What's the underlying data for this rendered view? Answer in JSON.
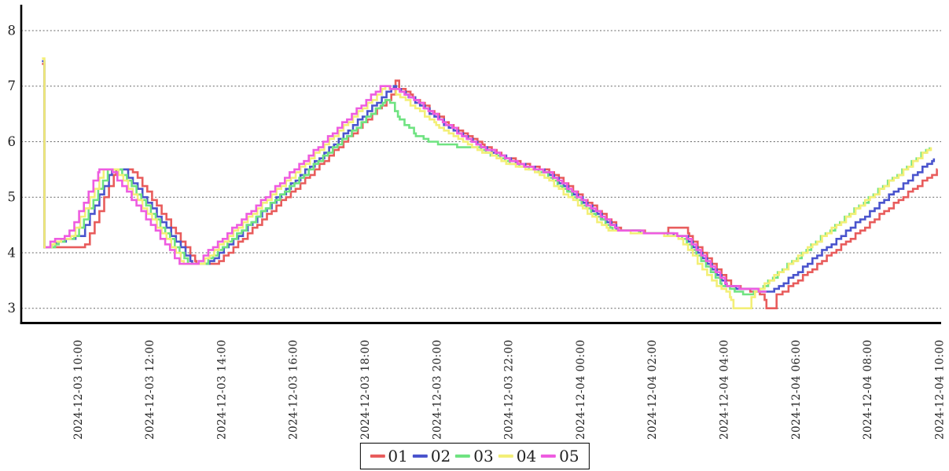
{
  "chart_data": {
    "type": "line",
    "step_style": "post",
    "title": "",
    "xlabel": "",
    "ylabel": "",
    "grid": true,
    "time_origin": "2024-12-03 09:00",
    "x_unit": "minutes since 2024-12-03 09:00",
    "x_axis": {
      "tick_minutes": [
        60,
        180,
        300,
        420,
        540,
        660,
        780,
        900,
        1020,
        1140,
        1260,
        1380,
        1500
      ],
      "labels": [
        "2024-12-03 10:00",
        "2024-12-03 12:00",
        "2024-12-03 14:00",
        "2024-12-03 16:00",
        "2024-12-03 18:00",
        "2024-12-03 20:00",
        "2024-12-03 22:00",
        "2024-12-04 00:00",
        "2024-12-04 02:00",
        "2024-12-04 04:00",
        "2024-12-04 06:00",
        "2024-12-04 08:00",
        "2024-12-04 10:00"
      ]
    },
    "y_axis": {
      "ticks": [
        3,
        4,
        5,
        6,
        7,
        8
      ],
      "min": 2.75,
      "max": 8.45
    },
    "legend": {
      "position": "bottom-center",
      "entries": [
        "01",
        "02",
        "03",
        "04",
        "05"
      ]
    },
    "series": [
      {
        "name": "01",
        "color": "#e85c5c",
        "points": [
          [
            0,
            7.4
          ],
          [
            4,
            7.4
          ],
          [
            4.1,
            4.1
          ],
          [
            70,
            4.1
          ],
          [
            124,
            5.5
          ],
          [
            149,
            5.5
          ],
          [
            258,
            3.8
          ],
          [
            291,
            3.8
          ],
          [
            591,
            6.9
          ],
          [
            591.1,
            7.1
          ],
          [
            597,
            7.1
          ],
          [
            597.1,
            6.95
          ],
          [
            620,
            6.8
          ],
          [
            680,
            6.3
          ],
          [
            740,
            5.9
          ],
          [
            800,
            5.6
          ],
          [
            850,
            5.45
          ],
          [
            968,
            4.4
          ],
          [
            1040,
            4.35
          ],
          [
            1047,
            4.45
          ],
          [
            1072,
            4.45
          ],
          [
            1082,
            4.3
          ],
          [
            1152,
            3.4
          ],
          [
            1188,
            3.3
          ],
          [
            1206,
            3.25
          ],
          [
            1211,
            3.0
          ],
          [
            1226,
            3.0
          ],
          [
            1228,
            3.25
          ],
          [
            1238,
            3.3
          ],
          [
            1497,
            5.5
          ]
        ]
      },
      {
        "name": "02",
        "color": "#4a54cd",
        "points": [
          [
            0,
            7.45
          ],
          [
            4,
            7.45
          ],
          [
            4.1,
            4.1
          ],
          [
            28,
            4.2
          ],
          [
            63,
            4.3
          ],
          [
            117,
            5.5
          ],
          [
            135,
            5.5
          ],
          [
            251,
            3.8
          ],
          [
            277,
            3.8
          ],
          [
            588,
            7.0
          ],
          [
            595,
            6.95
          ],
          [
            613,
            6.8
          ],
          [
            673,
            6.3
          ],
          [
            733,
            5.9
          ],
          [
            793,
            5.6
          ],
          [
            843,
            5.45
          ],
          [
            961,
            4.4
          ],
          [
            1033,
            4.35
          ],
          [
            1073,
            4.3
          ],
          [
            1143,
            3.4
          ],
          [
            1172,
            3.35
          ],
          [
            1215,
            3.3
          ],
          [
            1228,
            3.35
          ],
          [
            1491,
            5.7
          ]
        ]
      },
      {
        "name": "03",
        "color": "#6fe381",
        "points": [
          [
            14,
            4.1
          ],
          [
            28,
            4.2
          ],
          [
            56,
            4.3
          ],
          [
            110,
            5.5
          ],
          [
            128,
            5.5
          ],
          [
            244,
            3.8
          ],
          [
            270,
            3.8
          ],
          [
            570,
            6.7
          ],
          [
            578,
            6.75
          ],
          [
            595,
            6.45
          ],
          [
            625,
            6.1
          ],
          [
            665,
            5.95
          ],
          [
            726,
            5.88
          ],
          [
            786,
            5.6
          ],
          [
            836,
            5.45
          ],
          [
            954,
            4.4
          ],
          [
            1026,
            4.35
          ],
          [
            1066,
            4.3
          ],
          [
            1136,
            3.4
          ],
          [
            1162,
            3.3
          ],
          [
            1172,
            3.25
          ],
          [
            1184,
            3.25
          ],
          [
            1192,
            3.3
          ],
          [
            1484,
            5.9
          ]
        ]
      },
      {
        "name": "04",
        "color": "#f3ef77",
        "points": [
          [
            0,
            7.5
          ],
          [
            4,
            7.5
          ],
          [
            4.1,
            4.1
          ],
          [
            21,
            4.2
          ],
          [
            49,
            4.3
          ],
          [
            103,
            5.5
          ],
          [
            121,
            5.5
          ],
          [
            237,
            3.8
          ],
          [
            263,
            3.8
          ],
          [
            574,
            7.0
          ],
          [
            581,
            6.95
          ],
          [
            599,
            6.8
          ],
          [
            659,
            6.3
          ],
          [
            719,
            5.9
          ],
          [
            779,
            5.6
          ],
          [
            829,
            5.45
          ],
          [
            947,
            4.4
          ],
          [
            1019,
            4.35
          ],
          [
            1059,
            4.3
          ],
          [
            1129,
            3.4
          ],
          [
            1144,
            3.3
          ],
          [
            1150,
            3.2
          ],
          [
            1156,
            3.0
          ],
          [
            1184,
            3.0
          ],
          [
            1186,
            3.2
          ],
          [
            1192,
            3.3
          ],
          [
            1486,
            5.9
          ]
        ]
      },
      {
        "name": "05",
        "color": "#ee5ce0",
        "points": [
          [
            6,
            4.1
          ],
          [
            14,
            4.2
          ],
          [
            42,
            4.3
          ],
          [
            96,
            5.5
          ],
          [
            114,
            5.5
          ],
          [
            230,
            3.8
          ],
          [
            256,
            3.8
          ],
          [
            567,
            7.0
          ],
          [
            585,
            6.95
          ],
          [
            615,
            6.8
          ],
          [
            675,
            6.3
          ],
          [
            735,
            5.9
          ],
          [
            795,
            5.6
          ],
          [
            845,
            5.45
          ],
          [
            963,
            4.4
          ],
          [
            1035,
            4.35
          ],
          [
            1075,
            4.3
          ],
          [
            1145,
            3.4
          ],
          [
            1175,
            3.35
          ],
          [
            1205,
            3.3
          ],
          [
            1211,
            3.3
          ]
        ]
      }
    ],
    "style": {
      "grid_color": "#666666",
      "axis_color": "#000000",
      "tick_label_color": "#222222",
      "line_width": 2.6
    }
  }
}
